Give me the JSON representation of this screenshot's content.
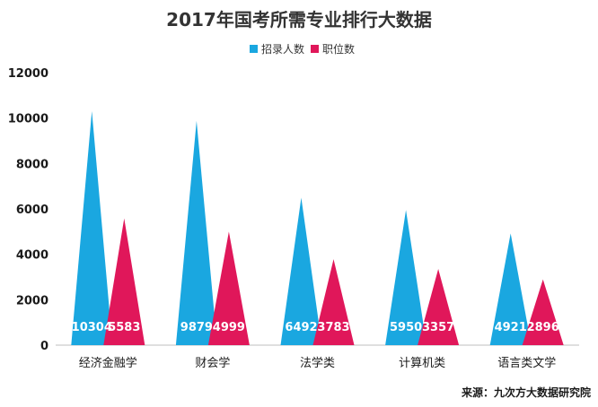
{
  "chart_data": {
    "type": "bar",
    "title": "2017年国考所需专业排行大数据",
    "categories": [
      "经济金融学",
      "财会学",
      "法学类",
      "计算机类",
      "语言类文学"
    ],
    "series": [
      {
        "name": "招录人数",
        "color": "#1aa7e0",
        "values": [
          10304,
          9879,
          6492,
          5950,
          4921
        ]
      },
      {
        "name": "职位数",
        "color": "#e0175a",
        "values": [
          5583,
          4999,
          3783,
          3357,
          2896
        ]
      }
    ],
    "ylim": [
      0,
      12000
    ],
    "yticks": [
      0,
      2000,
      4000,
      6000,
      8000,
      10000,
      12000
    ],
    "grid": false,
    "legend_position": "top-center",
    "bar_shape": "triangle"
  },
  "source": "来源：九次方大数据研究院"
}
